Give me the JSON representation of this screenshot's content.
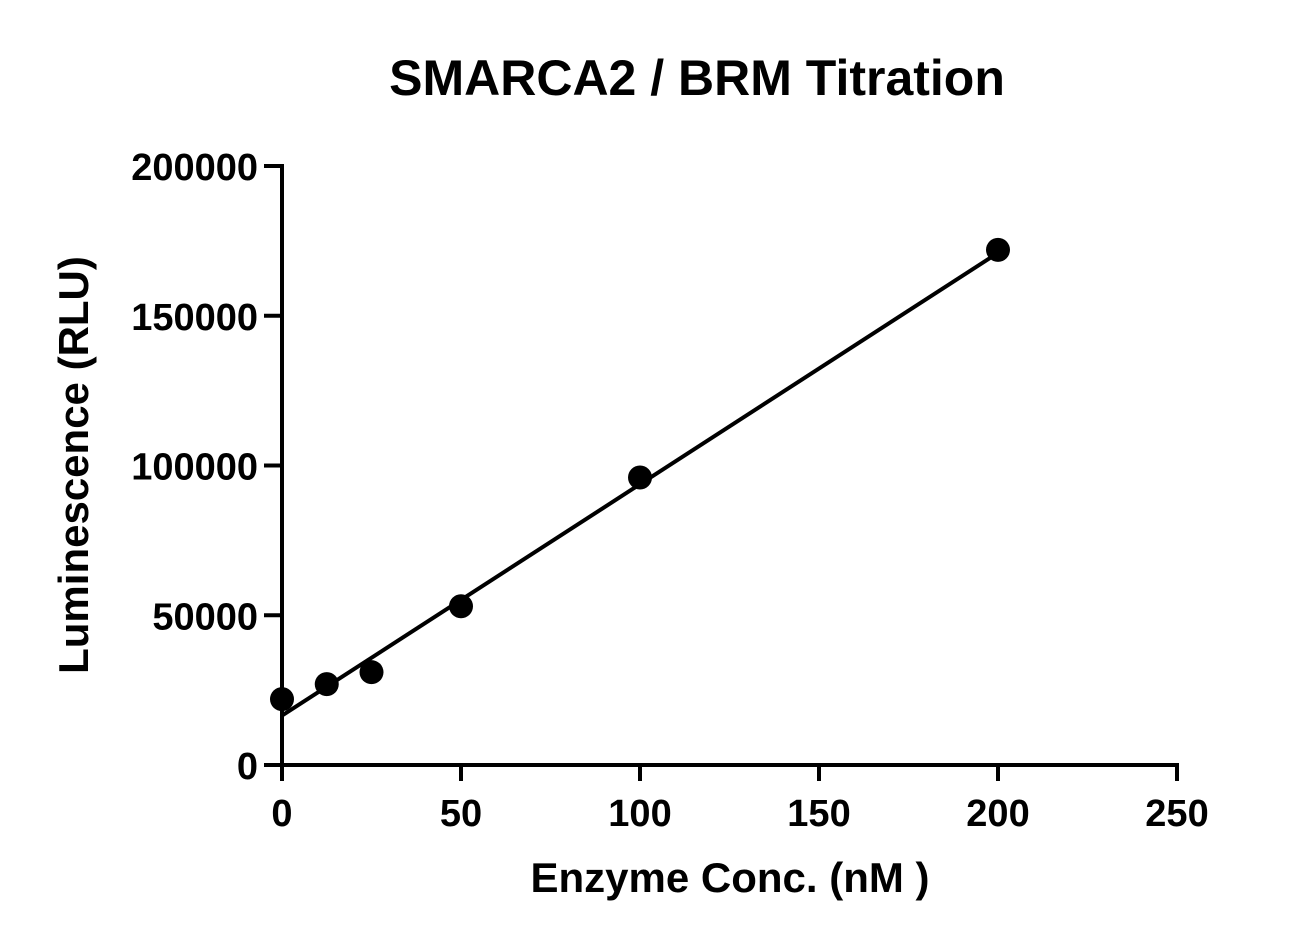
{
  "chart_data": {
    "type": "scatter",
    "title": "SMARCA2 / BRM Titration",
    "xlabel": "Enzyme Conc. (nM )",
    "ylabel": "Luminescence (RLU)",
    "xlim": [
      0,
      250
    ],
    "ylim": [
      0,
      200000
    ],
    "x_ticks": [
      0,
      50,
      100,
      150,
      200,
      250
    ],
    "y_ticks": [
      0,
      50000,
      100000,
      150000,
      200000
    ],
    "x_tick_labels": [
      "0",
      "50",
      "100",
      "150",
      "200",
      "250"
    ],
    "y_tick_labels": [
      "0",
      "50000",
      "100000",
      "150000",
      "200000"
    ],
    "grid": false,
    "legend": "none",
    "series": [
      {
        "x": [
          0,
          12.5,
          25,
          50,
          100,
          200
        ],
        "y": [
          22000,
          27000,
          31000,
          53000,
          96000,
          172000
        ],
        "color": "#000000",
        "marker": "circle"
      }
    ],
    "fit_line": {
      "x": [
        0,
        200
      ],
      "y": [
        16500,
        171000
      ],
      "color": "#000000"
    }
  }
}
